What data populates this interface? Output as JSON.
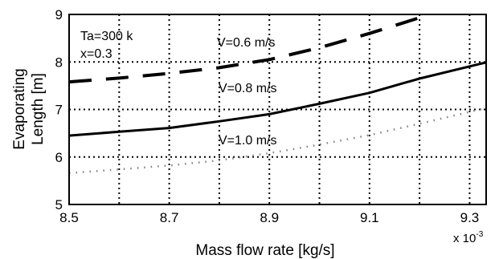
{
  "chart_data": {
    "type": "line",
    "xlabel": "Mass flow rate [kg/s]",
    "ylabel_line1": "Evaporating",
    "ylabel_line2": "Length [m]",
    "x_scale_label": "x 10",
    "x_scale_exponent": "-3",
    "xlim": [
      8.5,
      9.333
    ],
    "ylim": [
      5,
      9
    ],
    "x_gridlines": [
      8.6,
      8.7,
      8.8,
      8.9,
      9.0,
      9.1,
      9.2,
      9.3
    ],
    "y_gridlines": [
      6,
      7,
      8
    ],
    "grid": true,
    "x_ticks": [
      {
        "value": 8.5,
        "label": "8.5"
      },
      {
        "value": 8.7,
        "label": "8.7"
      },
      {
        "value": 8.9,
        "label": "8.9"
      },
      {
        "value": 9.1,
        "label": "9.1"
      },
      {
        "value": 9.3,
        "label": "9.3"
      }
    ],
    "y_ticks": [
      {
        "value": 5,
        "label": "5"
      },
      {
        "value": 6,
        "label": "6"
      },
      {
        "value": 7,
        "label": "7"
      },
      {
        "value": 8,
        "label": "8"
      },
      {
        "value": 9,
        "label": "9"
      }
    ],
    "conditions": [
      "Ta=300 k",
      "x=0.3"
    ],
    "series": [
      {
        "name": "V=0.6 m/s",
        "style": "dashed",
        "color": "#000000",
        "x": [
          8.5,
          8.6,
          8.7,
          8.8,
          8.9,
          9.0,
          9.1,
          9.2
        ],
        "y": [
          7.58,
          7.66,
          7.76,
          7.88,
          8.05,
          8.3,
          8.6,
          8.93
        ]
      },
      {
        "name": "V=0.8 m/s",
        "style": "solid",
        "color": "#000000",
        "x": [
          8.5,
          8.6,
          8.7,
          8.8,
          8.9,
          9.0,
          9.1,
          9.2,
          9.333
        ],
        "y": [
          6.45,
          6.53,
          6.61,
          6.75,
          6.9,
          7.12,
          7.35,
          7.65,
          7.99
        ]
      },
      {
        "name": "V=1.0 m/s",
        "style": "dotted",
        "color": "#808080",
        "x": [
          8.5,
          8.6,
          8.7,
          8.8,
          8.9,
          9.0,
          9.1,
          9.2,
          9.333
        ],
        "y": [
          5.66,
          5.74,
          5.82,
          5.93,
          6.08,
          6.26,
          6.46,
          6.7,
          7.03
        ]
      }
    ]
  }
}
